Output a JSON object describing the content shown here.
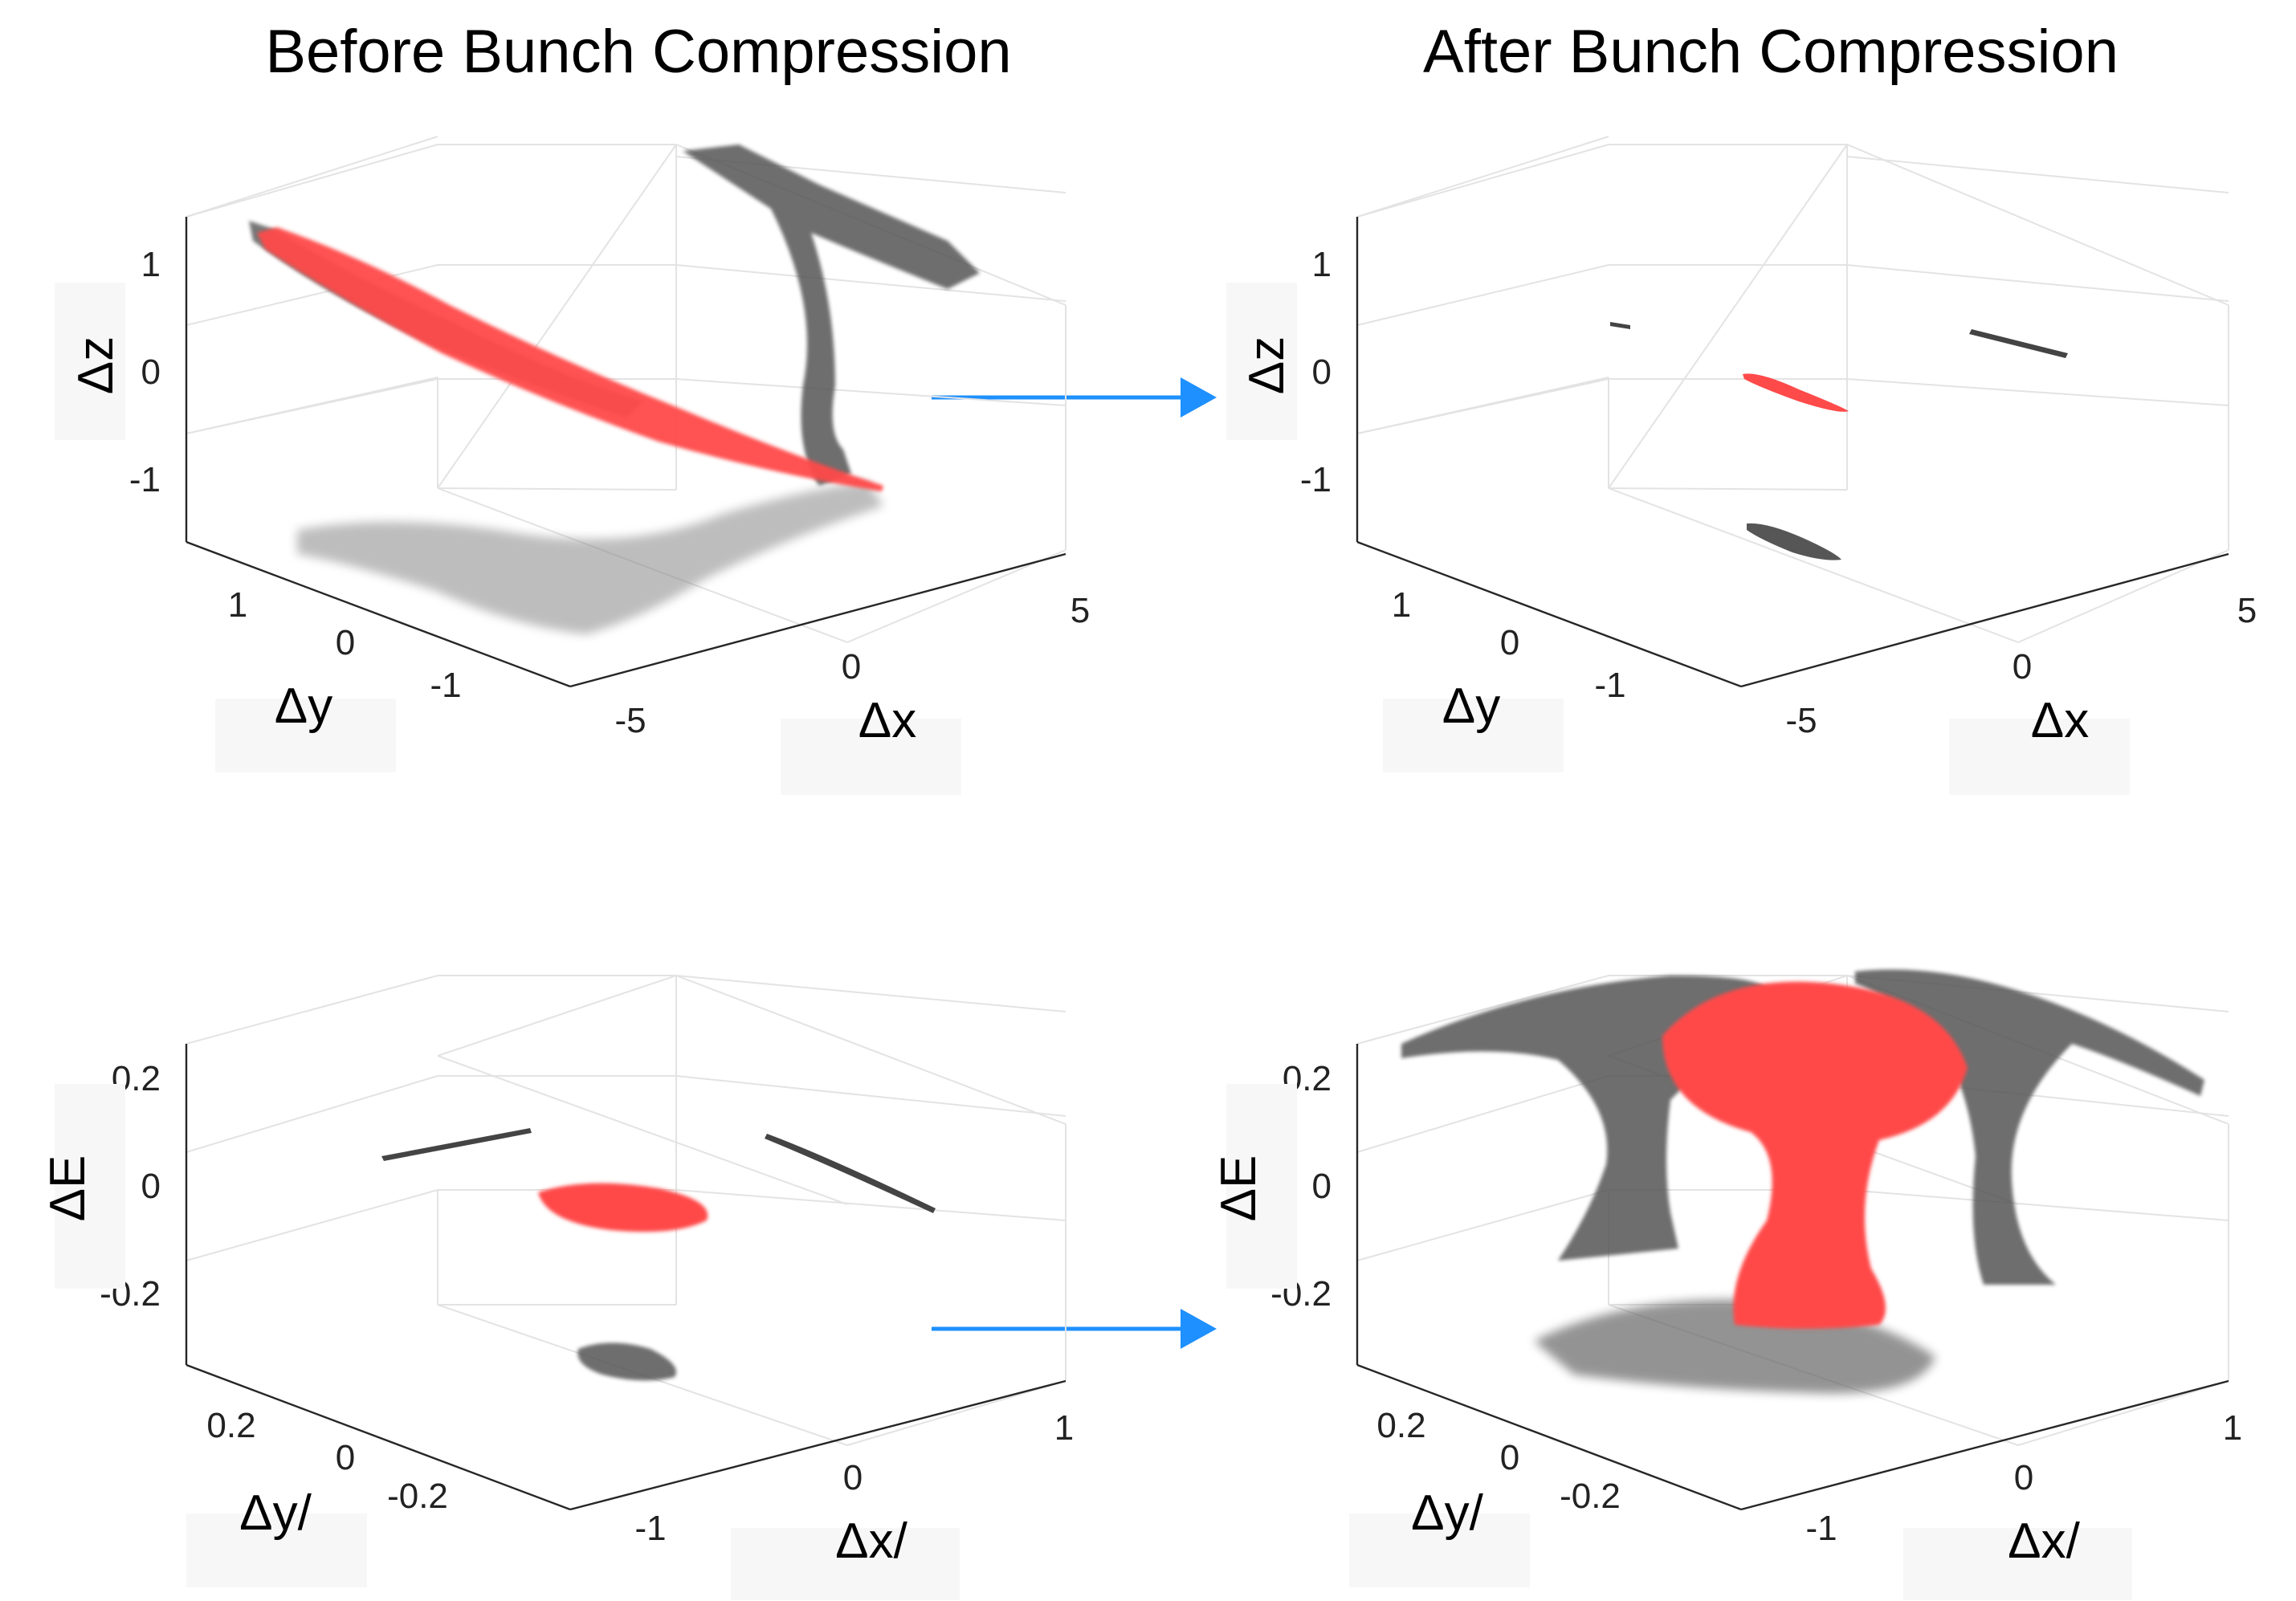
{
  "titles": {
    "left": "Before Bunch Compression",
    "right": "After Bunch Compression"
  },
  "colors": {
    "arrow": "#1e90ff",
    "cloud": "#ff4a4a",
    "projection": "#555555",
    "axis": "#262626",
    "grid": "#e3e3e3"
  },
  "chart_data": [
    {
      "type": "scatter3d",
      "title": "Before Bunch Compression",
      "axes": {
        "x": {
          "label": "Δx",
          "ticks": [
            "-5",
            "0",
            "5"
          ]
        },
        "y": {
          "label": "Δy",
          "ticks": [
            "1",
            "0",
            "-1"
          ]
        },
        "z": {
          "label": "Δz",
          "ticks": [
            "1",
            "0",
            "-1"
          ]
        }
      },
      "series": [
        {
          "shape": "elongated diagonal beam spanning Δz from +1.4 to -1.0",
          "color": "#ff4a4a"
        }
      ],
      "projections": "grey shadows on back walls and floor",
      "grid": true
    },
    {
      "type": "scatter3d",
      "title": "After Bunch Compression",
      "axes": {
        "x": {
          "label": "Δx",
          "ticks": [
            "-5",
            "0",
            "5"
          ]
        },
        "y": {
          "label": "Δy",
          "ticks": [
            "1",
            "0",
            "-1"
          ]
        },
        "z": {
          "label": "Δz",
          "ticks": [
            "1",
            "0",
            "-1"
          ]
        }
      },
      "series": [
        {
          "shape": "compact ellipse near Δz ≈ 0",
          "color": "#ff4a4a"
        }
      ],
      "projections": "small grey line shadows",
      "grid": true
    },
    {
      "type": "scatter3d",
      "axes": {
        "x": {
          "label": "Δx/",
          "ticks": [
            "-1",
            "0",
            "1"
          ]
        },
        "y": {
          "label": "Δy/",
          "ticks": [
            "0.2",
            "0",
            "-0.2"
          ]
        },
        "z": {
          "label": "ΔE",
          "ticks": [
            "0.2",
            "0",
            "-0.2"
          ]
        }
      },
      "series": [
        {
          "shape": "small compact cluster around ΔE ≈ -0.03",
          "color": "#ff4a4a"
        }
      ],
      "projections": "thin grey line shadows on walls, diamond-shaped shadow on floor",
      "grid": true
    },
    {
      "type": "scatter3d",
      "axes": {
        "x": {
          "label": "Δx/",
          "ticks": [
            "-1",
            "0",
            "1"
          ]
        },
        "y": {
          "label": "Δy/",
          "ticks": [
            "0.2",
            "0",
            "-0.2"
          ]
        },
        "z": {
          "label": "ΔE",
          "ticks": [
            "0.2",
            "0",
            "-0.2"
          ]
        }
      },
      "series": [
        {
          "shape": "hourglass-shaped cloud spanning ΔE from +0.3 to -0.3",
          "color": "#ff4a4a"
        }
      ],
      "projections": "large grey hourglass shadows on walls, dense shadow on floor",
      "grid": true
    }
  ]
}
